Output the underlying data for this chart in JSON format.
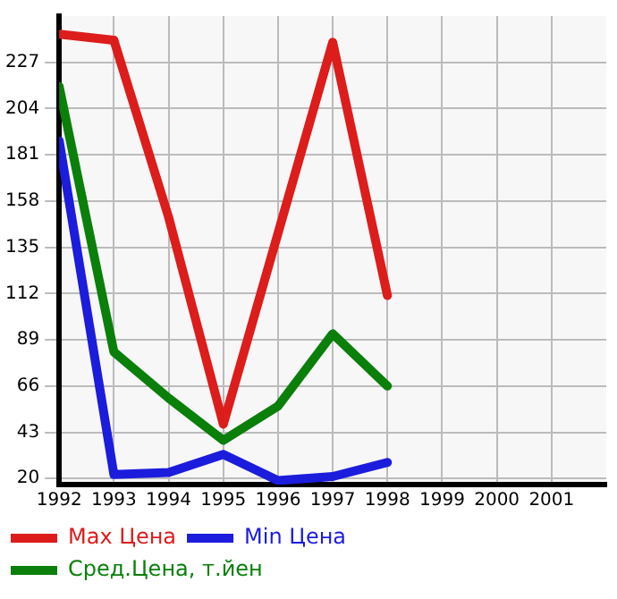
{
  "chart_data": {
    "type": "line",
    "x": [
      1992,
      1993,
      1994,
      1995,
      1996,
      1997,
      1998
    ],
    "series": [
      {
        "name": "Max Цена",
        "color": "#dd1c1c",
        "values": [
          241,
          238,
          150,
          47,
          142,
          237,
          111
        ]
      },
      {
        "name": "Min Цена",
        "color": "#1c1cdd",
        "values": [
          188,
          22,
          23,
          32,
          19,
          21,
          28
        ]
      },
      {
        "name": "Сред.Цена, т.йен",
        "color": "#0a7f0a",
        "values": [
          215,
          83,
          60,
          39,
          56,
          92,
          66
        ]
      }
    ],
    "xlim": [
      1992,
      2002
    ],
    "xticks": [
      1992,
      1993,
      1994,
      1995,
      1996,
      1997,
      1998,
      1999,
      2000,
      2001
    ],
    "ylim": [
      17,
      250
    ],
    "yticks": [
      20,
      43,
      66,
      89,
      112,
      135,
      158,
      181,
      204,
      227
    ],
    "grid": true,
    "legend": "bottom",
    "marker": "none",
    "line_style": "solid"
  }
}
